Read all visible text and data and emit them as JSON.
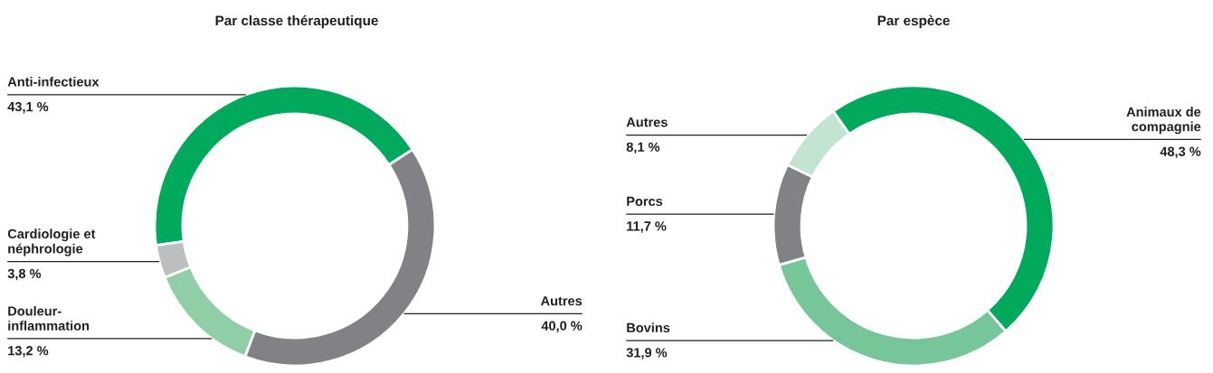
{
  "chart_data": [
    {
      "type": "donut",
      "title": "Par classe thérapeutique",
      "categories": [
        "Anti-infectieux",
        "Autres",
        "Douleur-\ninflammation",
        "Cardiologie et\nnéphrologie"
      ],
      "values": [
        43.1,
        40.0,
        13.2,
        3.8
      ],
      "colors": [
        "#00a95c",
        "#808285",
        "#8fcea6",
        "#bcbec0"
      ],
      "value_labels": [
        "43,1 %",
        "40,0 %",
        "13,2 %",
        "3,8 %"
      ]
    },
    {
      "type": "donut",
      "title": "Par espèce",
      "categories": [
        "Animaux de\ncompagnie",
        "Bovins",
        "Porcs",
        "Autres"
      ],
      "values": [
        48.3,
        31.9,
        11.7,
        8.1
      ],
      "colors": [
        "#00a95c",
        "#76c69a",
        "#808285",
        "#c2e4d0"
      ],
      "value_labels": [
        "48,3 %",
        "31,9 %",
        "11,7 %",
        "8,1 %"
      ]
    }
  ]
}
